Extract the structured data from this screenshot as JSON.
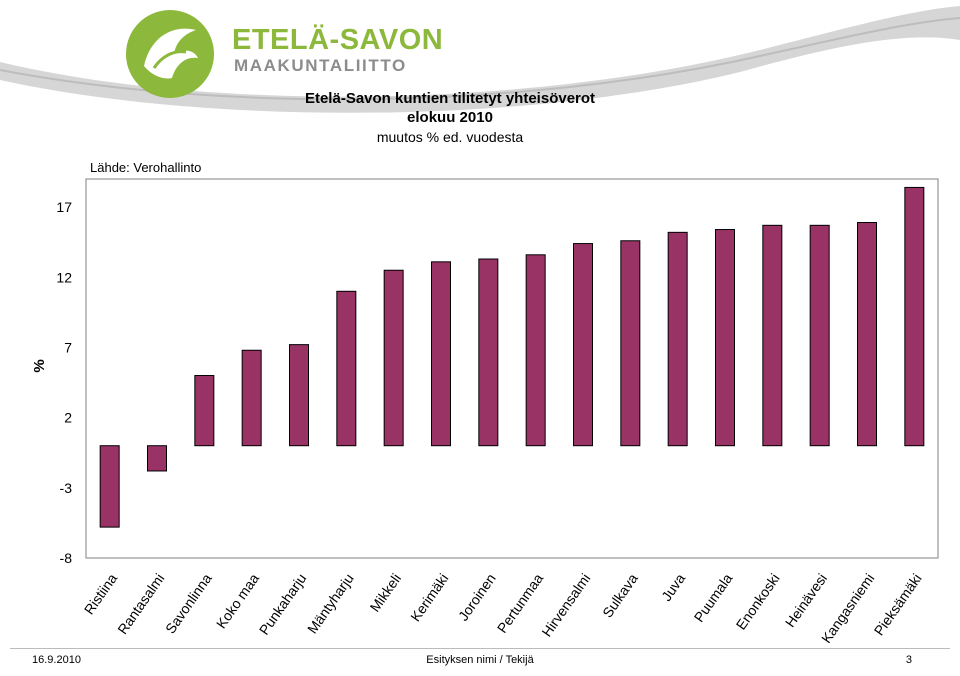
{
  "header": {
    "logo_line1": "ETELÄ-SAVON",
    "logo_line2": "MAAKUNTALIITTO",
    "brand_color": "#8cb83b",
    "title_line1": "Etelä-Savon kuntien tilitetyt yhteisöverot",
    "title_line2": "elokuu 2010",
    "subtitle": "muutos % ed. vuodesta",
    "source": "Lähde: Verohallinto"
  },
  "chart_data": {
    "type": "bar",
    "categories": [
      "Ristiina",
      "Rantasalmi",
      "Savonlinna",
      "Koko maa",
      "Punkaharju",
      "Mäntyharju",
      "Mikkeli",
      "Kerimäki",
      "Joroinen",
      "Pertunmaa",
      "Hirvensalmi",
      "Sulkava",
      "Juva",
      "Puumala",
      "Enonkoski",
      "Heinävesi",
      "Kangasniemi",
      "Pieksämäki"
    ],
    "values": [
      -5.8,
      -1.8,
      5.0,
      6.8,
      7.2,
      11.0,
      12.5,
      13.1,
      13.3,
      13.6,
      14.4,
      14.6,
      15.2,
      15.4,
      15.7,
      15.7,
      15.9,
      18.4
    ],
    "ylabel": "%",
    "yticks": [
      -8,
      -3,
      2,
      7,
      12,
      17
    ],
    "ylim": [
      -8,
      19
    ],
    "grid": false,
    "bar_color": "#993366",
    "plot_background": "#ffffff"
  },
  "footer": {
    "date": "16.9.2010",
    "center": "Esityksen nimi / Tekijä",
    "page": "3"
  }
}
